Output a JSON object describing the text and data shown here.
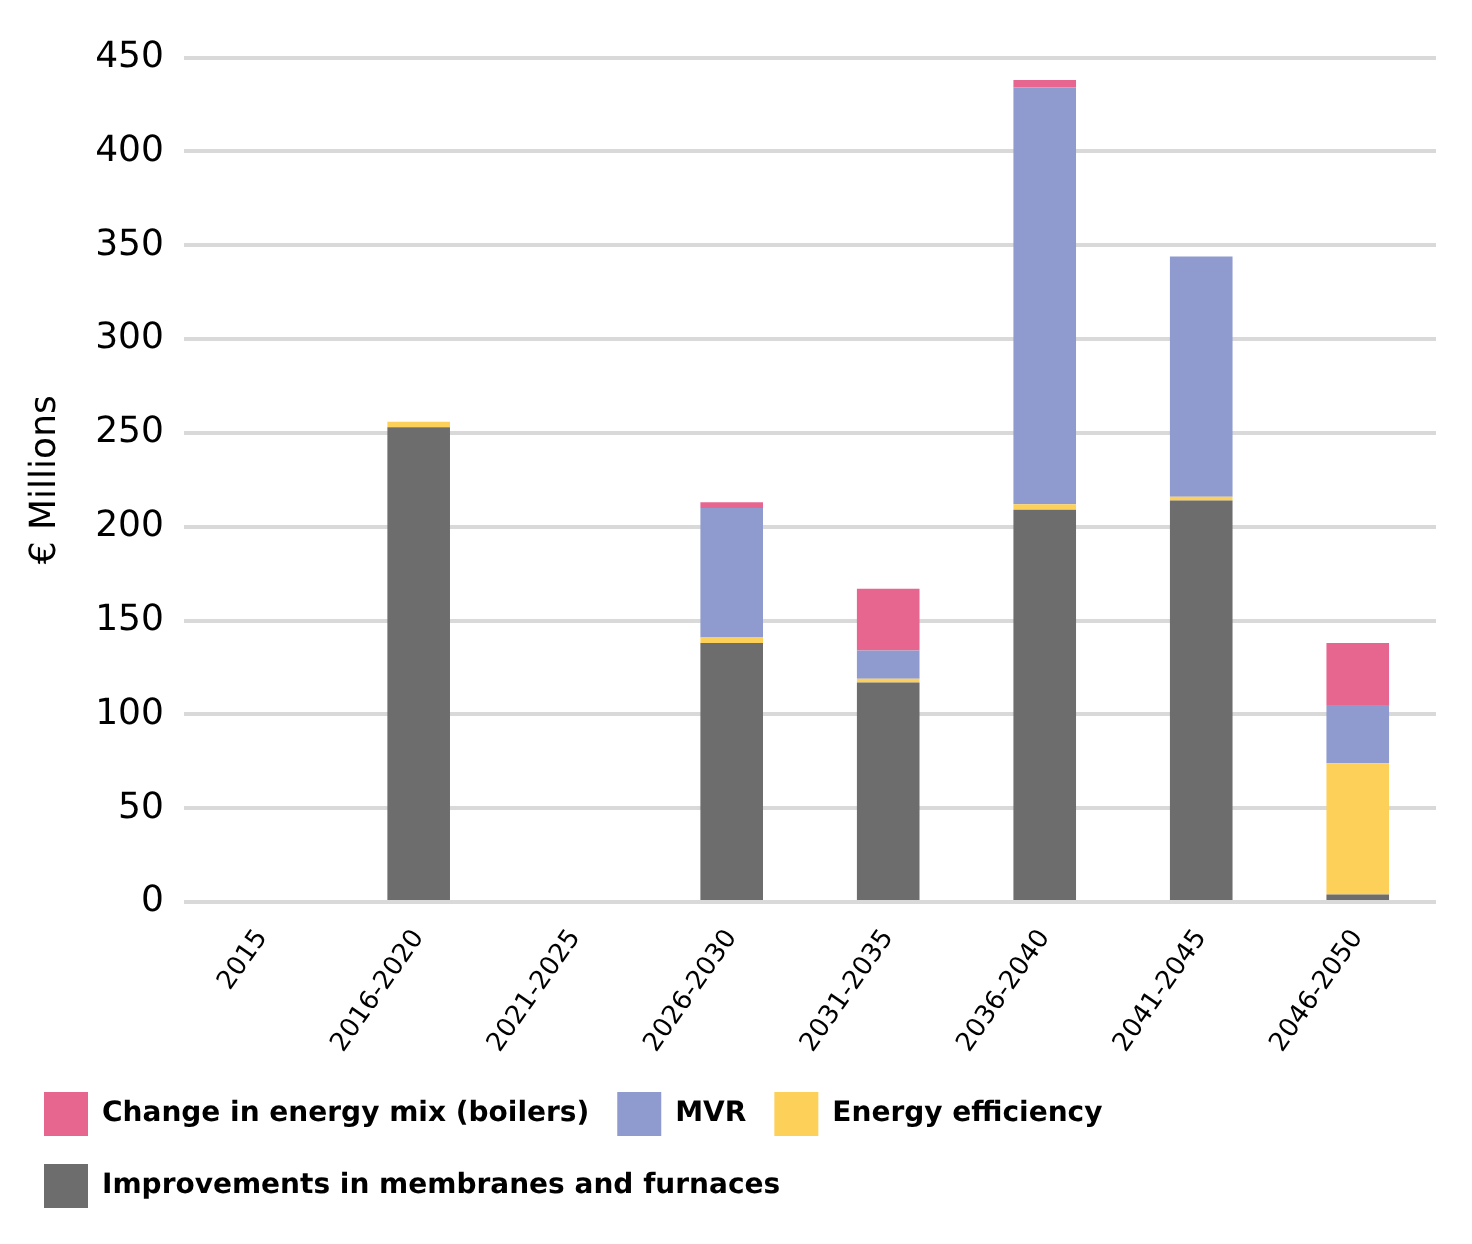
{
  "chart_data": {
    "type": "bar",
    "stacked": true,
    "ylabel": "€ Millions",
    "categories": [
      "2015",
      "2016-2020",
      "2021-2025",
      "2026-2030",
      "2031-2035",
      "2036-2040",
      "2041-2045",
      "2046-2050"
    ],
    "series": [
      {
        "name": "Improvements in membranes and furnaces",
        "color": "#6d6d6d",
        "values": [
          0,
          253,
          0,
          138,
          117,
          209,
          214,
          4
        ]
      },
      {
        "name": "Energy efficiency",
        "color": "#fdd05a",
        "values": [
          0,
          3,
          0,
          3,
          2,
          3,
          2,
          70
        ]
      },
      {
        "name": "MVR",
        "color": "#8f9bce",
        "values": [
          0,
          0,
          0,
          69,
          15,
          222,
          128,
          31
        ]
      },
      {
        "name": "Change in energy mix (boilers)",
        "color": "#e76690",
        "values": [
          0,
          0,
          0,
          3,
          33,
          4,
          0,
          33
        ]
      }
    ],
    "ylim": [
      0,
      450
    ],
    "yticks": [
      0,
      50,
      100,
      150,
      200,
      250,
      300,
      350,
      400,
      450
    ],
    "grid": "y",
    "legend": "bottom"
  }
}
